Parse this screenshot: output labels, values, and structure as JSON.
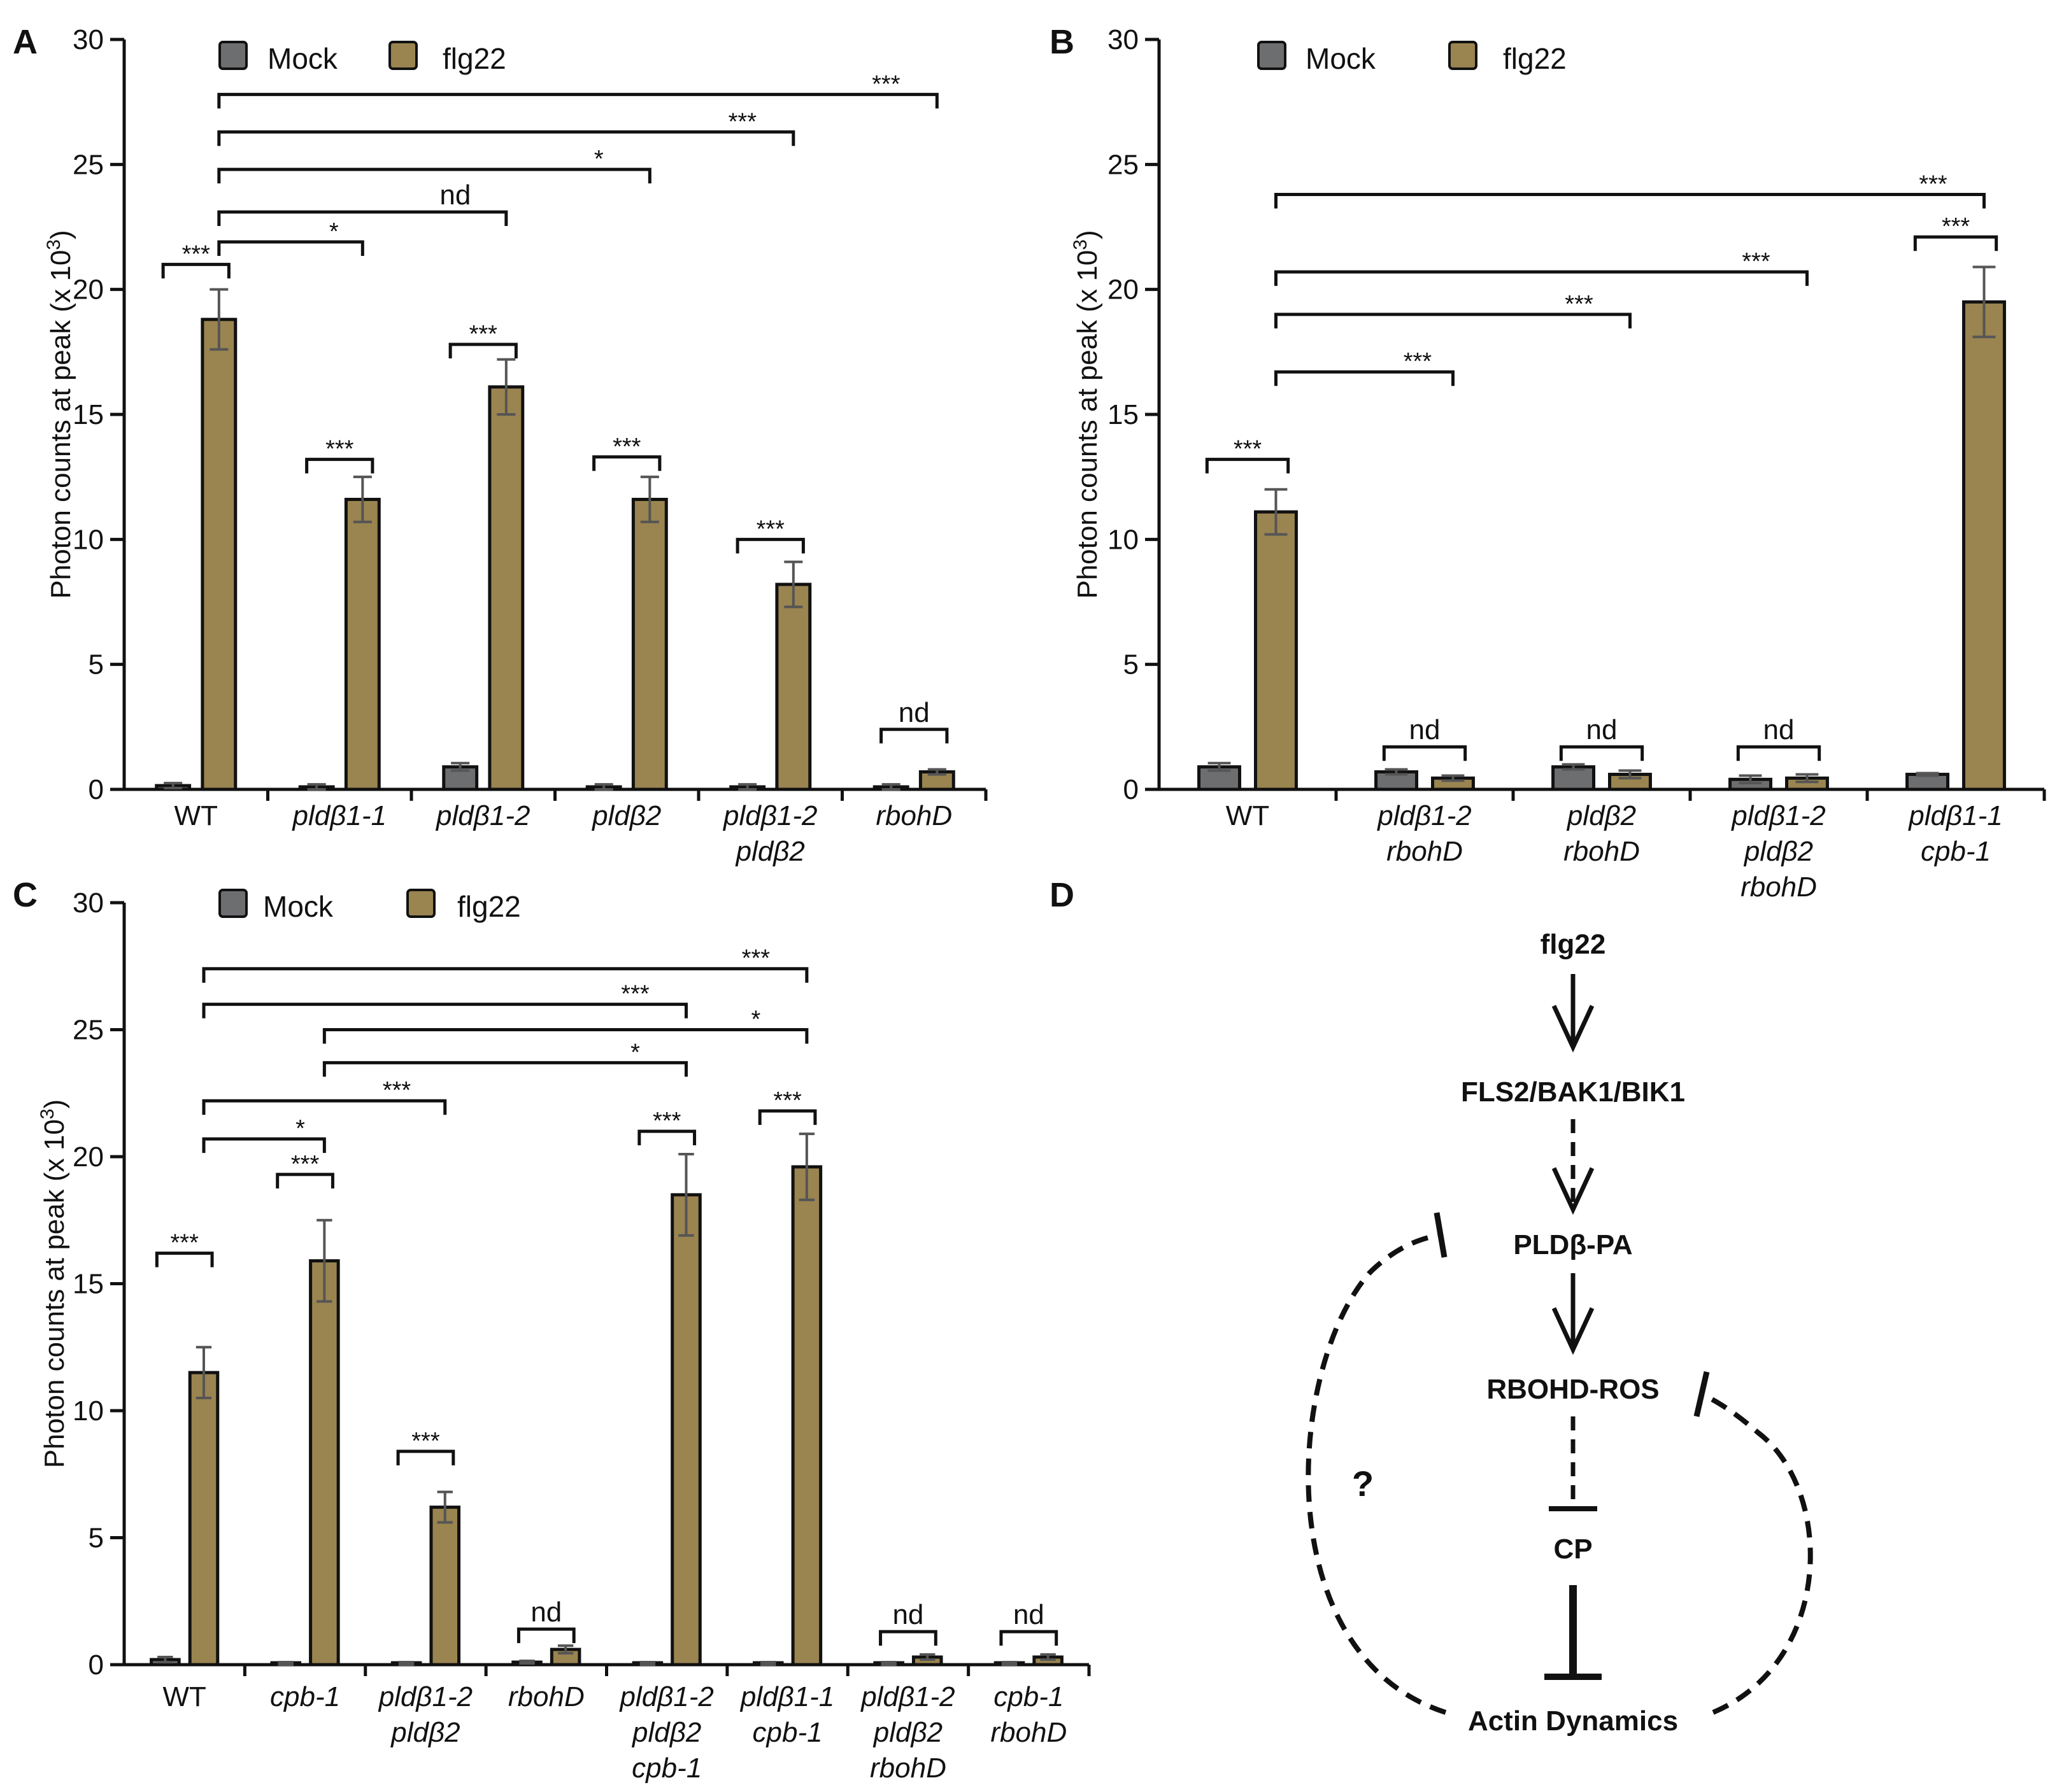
{
  "colors": {
    "mock": "#6d6e70",
    "flg22": "#9a8450",
    "axis": "#111111",
    "error": "#555555"
  },
  "legend": {
    "mock": "Mock",
    "flg22": "flg22"
  },
  "panels": [
    {
      "letter": "A"
    },
    {
      "letter": "B"
    },
    {
      "letter": "C"
    },
    {
      "letter": "D"
    }
  ],
  "chart_data": [
    {
      "panel": "A",
      "type": "bar",
      "ylabel_main": "Photon counts at peak (x 10",
      "ylabel_sup": "3",
      "ylabel_end": ")",
      "ylim": [
        0,
        30
      ],
      "yticks": [
        0,
        5,
        10,
        15,
        20,
        25,
        30
      ],
      "categories": [
        [
          "WT"
        ],
        [
          "pldβ1-1"
        ],
        [
          "pldβ1-2"
        ],
        [
          "pldβ2"
        ],
        [
          "pldβ1-2",
          "pldβ2"
        ],
        [
          "rbohD"
        ]
      ],
      "italic_categories": [
        false,
        true,
        true,
        true,
        true,
        true
      ],
      "series": [
        {
          "name": "Mock",
          "values": [
            0.15,
            0.1,
            0.9,
            0.1,
            0.1,
            0.1
          ],
          "errors": [
            0.1,
            0.1,
            0.15,
            0.1,
            0.1,
            0.1
          ]
        },
        {
          "name": "flg22",
          "values": [
            18.8,
            11.6,
            16.1,
            11.6,
            8.2,
            0.7
          ],
          "errors": [
            1.2,
            0.9,
            1.1,
            0.9,
            0.9,
            0.1
          ]
        }
      ],
      "brackets": [
        {
          "from": 0,
          "to": 0,
          "label": "***",
          "y": 21.0
        },
        {
          "from": 1,
          "to": 1,
          "label": "***",
          "y": 13.2
        },
        {
          "from": 2,
          "to": 2,
          "label": "***",
          "y": 17.8
        },
        {
          "from": 3,
          "to": 3,
          "label": "***",
          "y": 13.3
        },
        {
          "from": 4,
          "to": 4,
          "label": "***",
          "y": 10.0
        },
        {
          "from": 5,
          "to": 5,
          "label": "nd",
          "y": 2.4
        },
        {
          "from": 0,
          "to": 1,
          "label": "*",
          "y": 21.9
        },
        {
          "from": 0,
          "to": 2,
          "label": "nd",
          "y": 23.1
        },
        {
          "from": 0,
          "to": 3,
          "label": "*",
          "y": 24.8
        },
        {
          "from": 0,
          "to": 4,
          "label": "***",
          "y": 26.3
        },
        {
          "from": 0,
          "to": 5,
          "label": "***",
          "y": 27.8
        }
      ]
    },
    {
      "panel": "B",
      "type": "bar",
      "ylabel_main": "Photon counts at peak (x 10",
      "ylabel_sup": "3",
      "ylabel_end": ")",
      "ylim": [
        0,
        30
      ],
      "yticks": [
        0,
        5,
        10,
        15,
        20,
        25,
        30
      ],
      "categories": [
        [
          "WT"
        ],
        [
          "pldβ1-2",
          "rbohD"
        ],
        [
          "pldβ2",
          "rbohD"
        ],
        [
          "pldβ1-2",
          "pldβ2",
          "rbohD"
        ],
        [
          "pldβ1-1",
          "cpb-1"
        ]
      ],
      "italic_categories": [
        false,
        true,
        true,
        true,
        true
      ],
      "series": [
        {
          "name": "Mock",
          "values": [
            0.9,
            0.7,
            0.9,
            0.4,
            0.6
          ],
          "errors": [
            0.15,
            0.1,
            0.1,
            0.15,
            0.05
          ]
        },
        {
          "name": "flg22",
          "values": [
            11.1,
            0.45,
            0.6,
            0.45,
            19.5
          ],
          "errors": [
            0.9,
            0.1,
            0.15,
            0.15,
            1.4
          ]
        }
      ],
      "brackets": [
        {
          "from": 0,
          "to": 0,
          "label": "***",
          "y": 13.2
        },
        {
          "from": 1,
          "to": 1,
          "label": "nd",
          "y": 1.7
        },
        {
          "from": 2,
          "to": 2,
          "label": "nd",
          "y": 1.7
        },
        {
          "from": 3,
          "to": 3,
          "label": "nd",
          "y": 1.7
        },
        {
          "from": 4,
          "to": 4,
          "label": "***",
          "y": 22.1
        },
        {
          "from": 0,
          "to": 1,
          "label": "***",
          "y": 16.7
        },
        {
          "from": 0,
          "to": 2,
          "label": "***",
          "y": 19.0
        },
        {
          "from": 0,
          "to": 3,
          "label": "***",
          "y": 20.7
        },
        {
          "from": 0,
          "to": 4,
          "label": "***",
          "y": 23.8
        }
      ]
    },
    {
      "panel": "C",
      "type": "bar",
      "ylabel_main": "Photon counts at peak (x 10",
      "ylabel_sup": "3",
      "ylabel_end": ")",
      "ylim": [
        0,
        30
      ],
      "yticks": [
        0,
        5,
        10,
        15,
        20,
        25,
        30
      ],
      "categories": [
        [
          "WT"
        ],
        [
          "cpb-1"
        ],
        [
          "pldβ1-2",
          "pldβ2"
        ],
        [
          "rbohD"
        ],
        [
          "pldβ1-2",
          "pldβ2",
          "cpb-1"
        ],
        [
          "pldβ1-1",
          "cpb-1"
        ],
        [
          "pldβ1-2",
          "pldβ2",
          "rbohD"
        ],
        [
          "cpb-1",
          "rbohD"
        ]
      ],
      "italic_categories": [
        false,
        true,
        true,
        true,
        true,
        true,
        true,
        true
      ],
      "series": [
        {
          "name": "Mock",
          "values": [
            0.2,
            0.05,
            0.05,
            0.1,
            0.05,
            0.05,
            0.05,
            0.05
          ],
          "errors": [
            0.1,
            0.05,
            0.05,
            0.05,
            0.05,
            0.05,
            0.05,
            0.05
          ]
        },
        {
          "name": "flg22",
          "values": [
            11.5,
            15.9,
            6.2,
            0.6,
            18.5,
            19.6,
            0.3,
            0.3
          ],
          "errors": [
            1.0,
            1.6,
            0.6,
            0.15,
            1.6,
            1.3,
            0.1,
            0.1
          ]
        }
      ],
      "brackets": [
        {
          "from": 0,
          "to": 0,
          "label": "***",
          "y": 16.2
        },
        {
          "from": 1,
          "to": 1,
          "label": "***",
          "y": 19.3
        },
        {
          "from": 2,
          "to": 2,
          "label": "***",
          "y": 8.4
        },
        {
          "from": 3,
          "to": 3,
          "label": "nd",
          "y": 1.4
        },
        {
          "from": 4,
          "to": 4,
          "label": "***",
          "y": 21.0
        },
        {
          "from": 5,
          "to": 5,
          "label": "***",
          "y": 21.8
        },
        {
          "from": 6,
          "to": 6,
          "label": "nd",
          "y": 1.3
        },
        {
          "from": 7,
          "to": 7,
          "label": "nd",
          "y": 1.3
        },
        {
          "from": 0,
          "to": 1,
          "label": "*",
          "y": 20.7
        },
        {
          "from": 0,
          "to": 2,
          "label": "***",
          "y": 22.2
        },
        {
          "from": 1,
          "to": 4,
          "label": "*",
          "y": 23.7
        },
        {
          "from": 1,
          "to": 5,
          "label": "*",
          "y": 25.0
        },
        {
          "from": 0,
          "to": 4,
          "label": "***",
          "y": 26.0
        },
        {
          "from": 0,
          "to": 5,
          "label": "***",
          "y": 27.4
        }
      ]
    }
  ],
  "diagram": {
    "nodes": {
      "flg22": "flg22",
      "fls2": "FLS2/BAK1/BIK1",
      "pld": "PLDβ-PA",
      "rbohd": "RBOHD-ROS",
      "cp": "CP",
      "actin": "Actin Dynamics"
    },
    "question": "?"
  }
}
